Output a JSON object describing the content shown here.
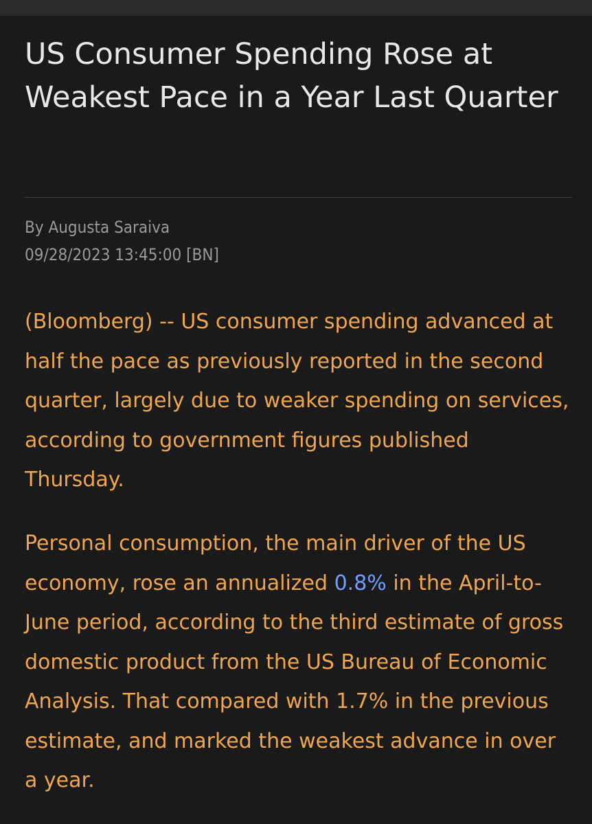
{
  "article": {
    "headline": "US Consumer Spending Rose at Weakest Pace in a Year Last Quarter",
    "byline": "By Augusta Saraiva",
    "dateline": "09/28/2023 13:45:00 [BN]",
    "paragraph1": "(Bloomberg) -- US consumer spending advanced at half the pace as previously reported in the second quarter, largely due to weaker spending on services, according to government figures published Thursday.",
    "paragraph2": {
      "before": "Personal consumption, the main driver of the US economy, rose an annualized ",
      "link_text": "0.8%",
      "after": " in the April-to-June period, according to the third estimate of gross domestic product from the US Bureau of Economic Analysis. That compared with 1.7% in the previous estimate, and marked the weakest advance in over a year."
    }
  },
  "colors": {
    "background": "#1a1a1a",
    "headline": "#e8e8e8",
    "meta": "#9a9a9a",
    "body_text": "#f0a64c",
    "link": "#6fa0ff"
  }
}
